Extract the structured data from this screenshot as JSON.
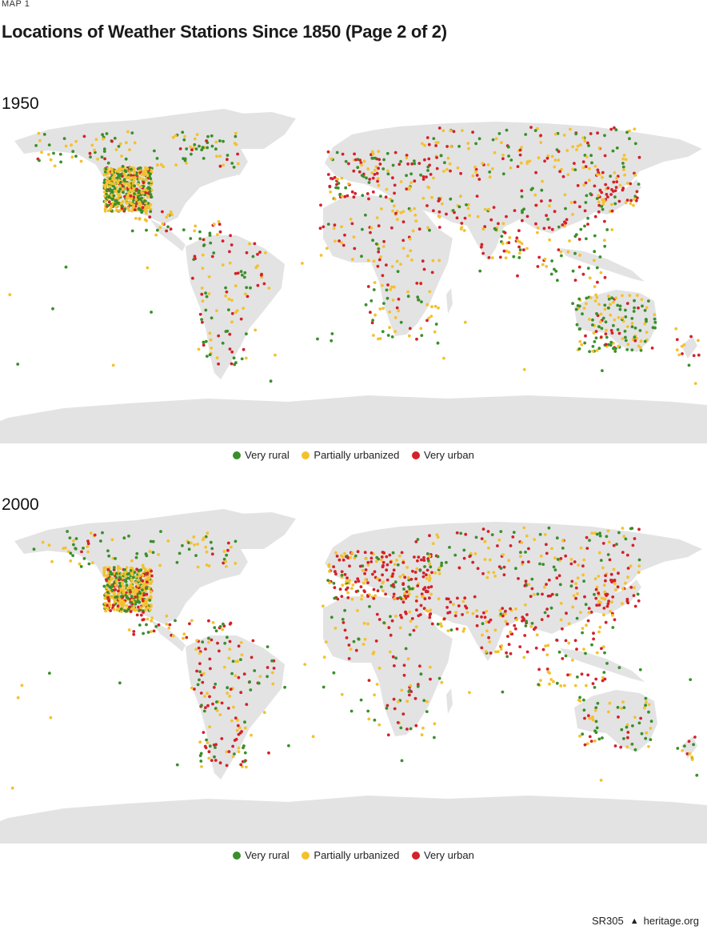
{
  "kicker": "MAP 1",
  "title": "Locations of Weather Stations Since 1850 (Page 2 of 2)",
  "maps": [
    {
      "year": "1950"
    },
    {
      "year": "2000"
    }
  ],
  "legend": [
    {
      "label": "Very rural",
      "color": "#3a8f2c"
    },
    {
      "label": "Partially urbanized",
      "color": "#f4c12e"
    },
    {
      "label": "Very urban",
      "color": "#d4212b"
    }
  ],
  "land_color": "#e3e3e3",
  "footer": {
    "code": "SR305",
    "site": "heritage.org",
    "icon": "liberty-bell-icon"
  }
}
